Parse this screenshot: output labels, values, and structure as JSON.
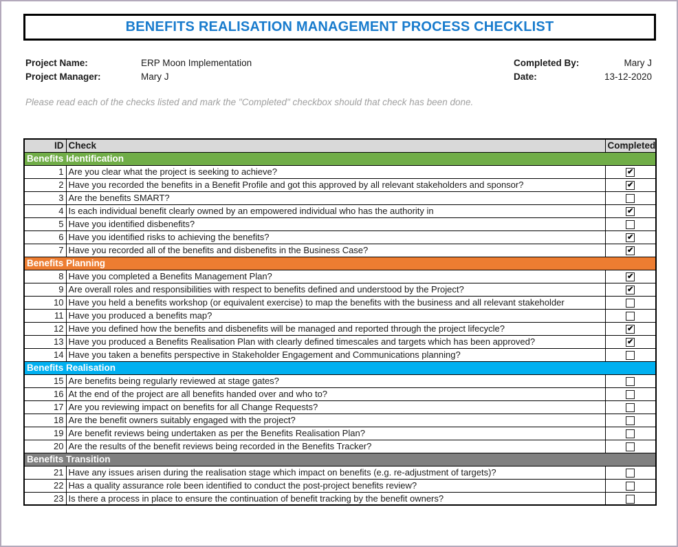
{
  "header": {
    "title": "BENEFITS REALISATION MANAGEMENT PROCESS CHECKLIST",
    "instruction": "Please read each of the checks listed and mark the \"Completed\" checkbox should that check has been done."
  },
  "meta": {
    "project_name_label": "Project Name:",
    "project_name": "ERP Moon Implementation",
    "project_manager_label": "Project Manager:",
    "project_manager": "Mary J",
    "completed_by_label": "Completed By:",
    "completed_by": "Mary J",
    "date_label": "Date:",
    "date": "13-12-2020"
  },
  "table": {
    "headers": {
      "id": "ID",
      "check": "Check",
      "completed": "Completed"
    },
    "sections": [
      {
        "name": "Benefits Identification",
        "color": "#70AD47",
        "rows": [
          {
            "id": "1",
            "check": "Are you clear what the project is seeking to achieve?",
            "completed": true
          },
          {
            "id": "2",
            "check": "Have you recorded the benefits in a Benefit Profile and got this approved by all relevant stakeholders and sponsor?",
            "completed": true
          },
          {
            "id": "3",
            "check": "Are the benefits SMART?",
            "completed": false
          },
          {
            "id": "4",
            "check": "Is each individual benefit clearly owned by an empowered individual who has the authority in",
            "completed": true
          },
          {
            "id": "5",
            "check": "Have you identified disbenefits?",
            "completed": false
          },
          {
            "id": "6",
            "check": "Have you identified risks to achieving the benefits?",
            "completed": true
          },
          {
            "id": "7",
            "check": "Have you recorded all of the benefits and disbenefits in the Business Case?",
            "completed": true
          }
        ]
      },
      {
        "name": "Benefits Planning",
        "color": "#ED7D31",
        "rows": [
          {
            "id": "8",
            "check": "Have you completed a Benefits Management Plan?",
            "completed": true
          },
          {
            "id": "9",
            "check": "Are overall roles and responsibilities with respect to benefits defined and understood by the Project?",
            "completed": true
          },
          {
            "id": "10",
            "check": "Have you held a benefits workshop (or equivalent exercise) to map the benefits with the business and all relevant stakeholder",
            "completed": false
          },
          {
            "id": "11",
            "check": "Have you produced a benefits map?",
            "completed": false
          },
          {
            "id": "12",
            "check": "Have you defined how the benefits and disbenefits will be managed and reported through the project lifecycle?",
            "completed": true
          },
          {
            "id": "13",
            "check": "Have you produced a Benefits Realisation Plan with clearly defined timescales and targets which has been approved?",
            "completed": true
          },
          {
            "id": "14",
            "check": "Have you taken a benefits perspective in Stakeholder Engagement and Communications planning?",
            "completed": false
          }
        ]
      },
      {
        "name": "Benefits Realisation",
        "color": "#00B0F0",
        "rows": [
          {
            "id": "15",
            "check": "Are benefits being regularly reviewed at stage gates?",
            "completed": false
          },
          {
            "id": "16",
            "check": "At the end of the project are all benefits handed over and who to?",
            "completed": false
          },
          {
            "id": "17",
            "check": "Are you reviewing impact on benefits for all Change Requests?",
            "completed": false
          },
          {
            "id": "18",
            "check": "Are the benefit owners suitably engaged with the project?",
            "completed": false
          },
          {
            "id": "19",
            "check": "Are benefit reviews being undertaken as per the Benefits Realisation Plan?",
            "completed": false
          },
          {
            "id": "20",
            "check": "Are the results of the benefit reviews being recorded in the Benefits Tracker?",
            "completed": false
          }
        ]
      },
      {
        "name": "Benefits Transition",
        "color": "#808080",
        "rows": [
          {
            "id": "21",
            "check": "Have any issues arisen during the realisation stage which impact on benefits (e.g. re-adjustment of targets)?",
            "completed": false
          },
          {
            "id": "22",
            "check": "Has a quality assurance role been identified to conduct the post-project benefits review?",
            "completed": false
          },
          {
            "id": "23",
            "check": "Is there a process in place to ensure the continuation of benefit tracking by the benefit owners?",
            "completed": false
          }
        ]
      }
    ]
  },
  "colors": {
    "title_text": "#187BCD",
    "table_header_bg": "#D9D9D9",
    "page_border": "#B3A9BB"
  }
}
